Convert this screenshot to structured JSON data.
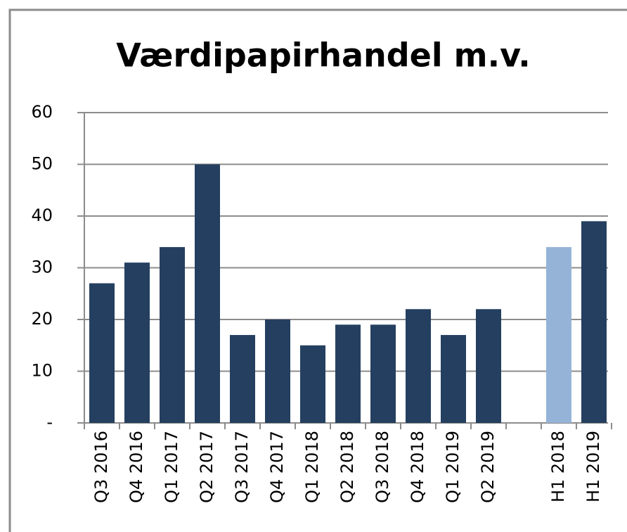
{
  "chart_data": {
    "type": "bar",
    "title": "Værdipapirhandel m.v.",
    "categories": [
      "Q3 2016",
      "Q4 2016",
      "Q1 2017",
      "Q2 2017",
      "Q3 2017",
      "Q4 2017",
      "Q1 2018",
      "Q2 2018",
      "Q3 2018",
      "Q4 2018",
      "Q1 2019",
      "Q2 2019",
      null,
      "H1 2018",
      "H1 2019"
    ],
    "values": [
      27,
      31,
      34,
      50,
      17,
      20,
      15,
      19,
      19,
      22,
      17,
      22,
      null,
      34,
      39
    ],
    "colors": [
      "#243f60",
      "#243f60",
      "#243f60",
      "#243f60",
      "#243f60",
      "#243f60",
      "#243f60",
      "#243f60",
      "#243f60",
      "#243f60",
      "#243f60",
      "#243f60",
      null,
      "#95b3d7",
      "#243f60"
    ],
    "ylim": [
      0,
      60
    ],
    "yticks": [
      {
        "value": 0,
        "label": "-"
      },
      10,
      20,
      30,
      40,
      50,
      60
    ],
    "grid": true
  }
}
